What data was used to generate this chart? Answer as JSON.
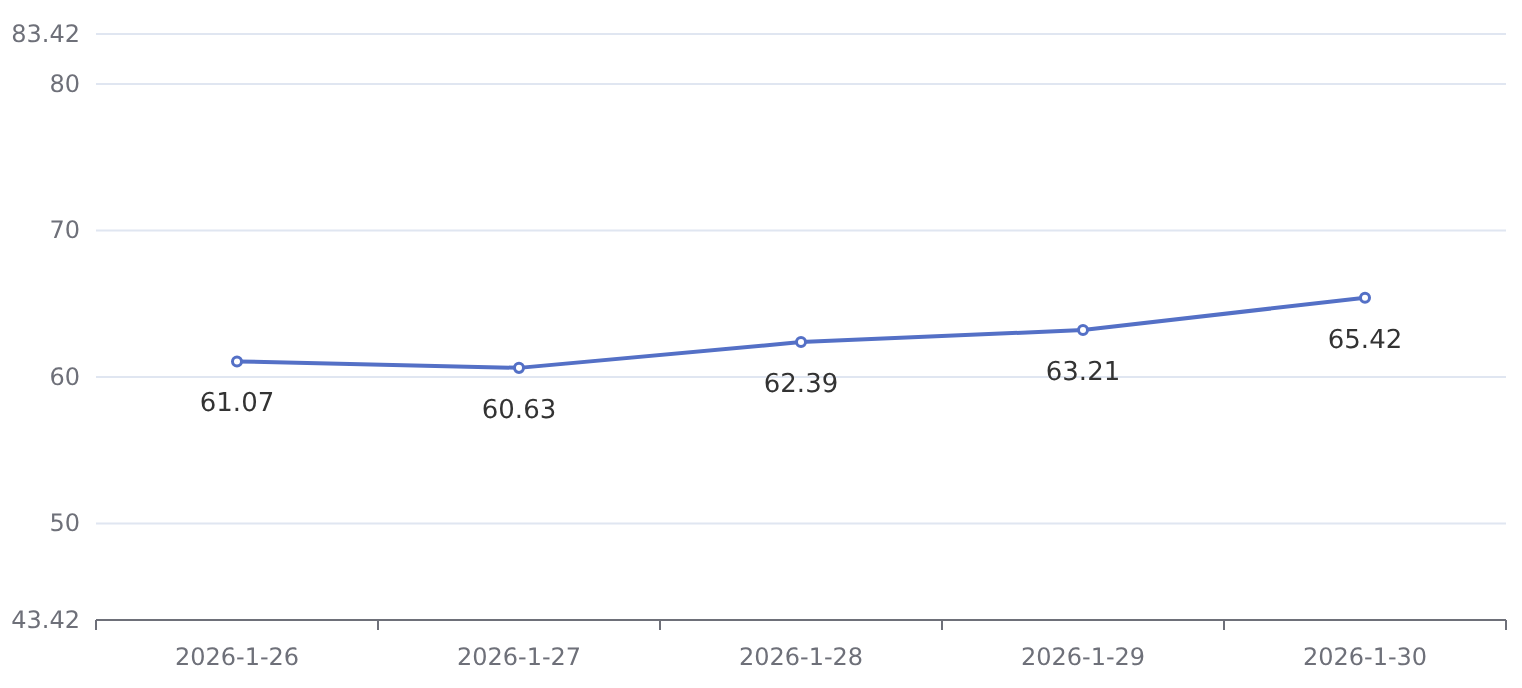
{
  "chart_data": {
    "type": "line",
    "categories": [
      "2026-1-26",
      "2026-1-27",
      "2026-1-28",
      "2026-1-29",
      "2026-1-30"
    ],
    "series": [
      {
        "color": "#5470c6",
        "values": [
          61.07,
          60.63,
          62.39,
          63.21,
          65.42
        ]
      }
    ],
    "ylim": [
      43.42,
      83.42
    ],
    "yticks": [
      43.42,
      50,
      60,
      70,
      80,
      83.42
    ],
    "grid": "y",
    "marker": "circle",
    "line_style": "solid",
    "data_labels": true
  }
}
